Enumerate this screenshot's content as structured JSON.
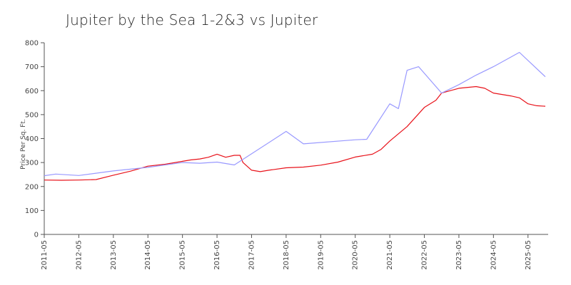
{
  "chart_data": {
    "type": "line",
    "title": "Jupiter by  the Sea 1-2&3 vs  Jupiter",
    "xlabel": "",
    "ylabel": "Price Per Sq. Ft.",
    "ylim": [
      0,
      800
    ],
    "yticks": [
      0,
      100,
      200,
      300,
      400,
      500,
      600,
      700,
      800
    ],
    "xlim": [
      "2011-05",
      "2025-12"
    ],
    "xticks": [
      "2011-05",
      "2012-05",
      "2013-05",
      "2014-05",
      "2015-05",
      "2016-05",
      "2017-05",
      "2018-05",
      "2019-05",
      "2020-05",
      "2021-05",
      "2022-05",
      "2023-05",
      "2024-05",
      "2025-05"
    ],
    "grid": false,
    "legend": "none",
    "series": [
      {
        "color": "#e8121a",
        "points": [
          [
            "2011-05",
            227
          ],
          [
            "2011-11",
            226
          ],
          [
            "2012-05",
            227
          ],
          [
            "2012-11",
            229
          ],
          [
            "2013-05",
            247
          ],
          [
            "2013-11",
            264
          ],
          [
            "2014-05",
            285
          ],
          [
            "2014-11",
            293
          ],
          [
            "2015-05",
            305
          ],
          [
            "2015-08",
            311
          ],
          [
            "2015-11",
            315
          ],
          [
            "2016-02",
            322
          ],
          [
            "2016-05",
            335
          ],
          [
            "2016-08",
            322
          ],
          [
            "2016-11",
            330
          ],
          [
            "2017-01",
            330
          ],
          [
            "2017-02",
            300
          ],
          [
            "2017-05",
            268
          ],
          [
            "2017-08",
            262
          ],
          [
            "2017-11",
            268
          ],
          [
            "2018-05",
            278
          ],
          [
            "2018-11",
            281
          ],
          [
            "2019-05",
            289
          ],
          [
            "2019-11",
            302
          ],
          [
            "2020-05",
            323
          ],
          [
            "2020-11",
            335
          ],
          [
            "2021-02",
            355
          ],
          [
            "2021-05",
            390
          ],
          [
            "2021-11",
            450
          ],
          [
            "2022-05",
            530
          ],
          [
            "2022-09",
            560
          ],
          [
            "2022-11",
            590
          ],
          [
            "2023-05",
            610
          ],
          [
            "2023-11",
            617
          ],
          [
            "2024-02",
            610
          ],
          [
            "2024-05",
            590
          ],
          [
            "2024-11",
            578
          ],
          [
            "2025-02",
            570
          ],
          [
            "2025-05",
            545
          ],
          [
            "2025-08",
            537
          ],
          [
            "2025-11",
            535
          ]
        ]
      },
      {
        "color": "#9999ff",
        "points": [
          [
            "2011-05",
            245
          ],
          [
            "2011-09",
            252
          ],
          [
            "2012-05",
            246
          ],
          [
            "2013-05",
            265
          ],
          [
            "2014-05",
            280
          ],
          [
            "2015-05",
            300
          ],
          [
            "2015-11",
            297
          ],
          [
            "2016-05",
            302
          ],
          [
            "2016-11",
            290
          ],
          [
            "2018-05",
            430
          ],
          [
            "2018-11",
            378
          ],
          [
            "2020-05",
            395
          ],
          [
            "2020-09",
            397
          ],
          [
            "2021-05",
            545
          ],
          [
            "2021-08",
            525
          ],
          [
            "2021-11",
            685
          ],
          [
            "2022-03",
            700
          ],
          [
            "2022-11",
            590
          ],
          [
            "2023-05",
            625
          ],
          [
            "2023-11",
            665
          ],
          [
            "2024-05",
            700
          ],
          [
            "2025-02",
            760
          ],
          [
            "2025-11",
            658
          ]
        ]
      }
    ]
  }
}
